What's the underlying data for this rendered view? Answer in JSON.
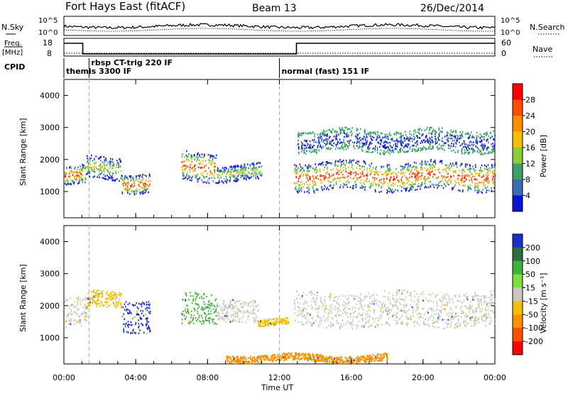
{
  "header": {
    "title": "Fort Hays East (fitACF)",
    "beam": "Beam 13",
    "date": "26/Dec/2014"
  },
  "noise_panel": {
    "left_label": "N.Sky",
    "right_label": "N.Search",
    "left_ticks": [
      "10^5",
      "10^0"
    ],
    "right_ticks": [
      "10^5",
      "10^0"
    ]
  },
  "freq_panel": {
    "left_label_1": "Freq.",
    "left_label_2": "[MHz]",
    "right_label": "Nave",
    "left_ticks": [
      "18",
      "8"
    ],
    "right_ticks": [
      "60",
      "0"
    ]
  },
  "cpid": {
    "label": "CPID",
    "segments": [
      {
        "text": "themis 3300 IF",
        "start_hour": 0.0
      },
      {
        "text": "rbsp CT-trig 220 IF",
        "start_hour": 1.4
      },
      {
        "text": "normal (fast) 151 IF",
        "start_hour": 12.0
      }
    ]
  },
  "power_panel": {
    "ylabel": "Slant Range [km]",
    "colorbar_label": "Power [dB]",
    "colorbar_ticks": [
      "28",
      "24",
      "20",
      "16",
      "12",
      "8",
      "4"
    ],
    "colorbar_colors": [
      "#ff0000",
      "#ff4c00",
      "#ff8c00",
      "#f0c000",
      "#8ccc3c",
      "#3ca068",
      "#3c6cb4",
      "#0a14d6"
    ]
  },
  "velocity_panel": {
    "ylabel": "Slant Range [km]",
    "colorbar_label": "Velocity [m s⁻¹]",
    "colorbar_ticks": [
      "200",
      "100",
      "50",
      "15",
      "-15",
      "-50",
      "-100",
      "-200"
    ],
    "colorbar_colors": [
      "#1a2ec8",
      "#2e6e3c",
      "#3cb43c",
      "#7ede3c",
      "#c8c8c0",
      "#f0c000",
      "#ff9000",
      "#ff5000",
      "#ff0000"
    ]
  },
  "chart_data": {
    "type": "heatmap",
    "xlabel": "Time UT",
    "x_ticks": [
      "00:00",
      "04:00",
      "08:00",
      "12:00",
      "16:00",
      "20:00",
      "00:00"
    ],
    "xlim_hours": [
      0,
      24
    ],
    "y_ticks": [
      "1000",
      "2000",
      "3000",
      "4000"
    ],
    "ylim_km": [
      180,
      4500
    ],
    "freq_mhz": [
      {
        "from_hour": 0.0,
        "to_hour": 1.05,
        "value": 16
      },
      {
        "from_hour": 1.05,
        "to_hour": 12.95,
        "value": 8.5
      },
      {
        "from_hour": 12.95,
        "to_hour": 24.0,
        "value": 16
      }
    ],
    "power_bands": [
      {
        "start": 0.0,
        "end": 1.2,
        "center_km": 1500,
        "width_km": 600,
        "level": "high"
      },
      {
        "start": 1.2,
        "end": 3.2,
        "center_km": 1750,
        "width_km": 700,
        "level": "mid"
      },
      {
        "start": 3.2,
        "end": 4.8,
        "center_km": 1300,
        "width_km": 600,
        "level": "high"
      },
      {
        "start": 6.5,
        "end": 8.5,
        "center_km": 1800,
        "width_km": 900,
        "level": "high"
      },
      {
        "start": 8.5,
        "end": 11.0,
        "center_km": 1600,
        "width_km": 500,
        "level": "mid"
      },
      {
        "start": 12.8,
        "end": 24.0,
        "center_km": 1500,
        "width_km": 900,
        "level": "high"
      },
      {
        "start": 13.0,
        "end": 24.0,
        "center_km": 2600,
        "width_km": 700,
        "level": "low"
      }
    ],
    "velocity_bands": [
      {
        "start": 0.0,
        "end": 1.3,
        "center_km": 1800,
        "width_km": 900,
        "class": "-15"
      },
      {
        "start": 1.3,
        "end": 3.2,
        "center_km": 2200,
        "width_km": 500,
        "class": "-50"
      },
      {
        "start": 3.2,
        "end": 4.8,
        "center_km": 1700,
        "width_km": 1000,
        "class": "200"
      },
      {
        "start": 6.5,
        "end": 8.5,
        "center_km": 1900,
        "width_km": 1000,
        "class": "50"
      },
      {
        "start": 8.5,
        "end": 10.8,
        "center_km": 1900,
        "width_km": 700,
        "class": "15"
      },
      {
        "start": 10.8,
        "end": 12.5,
        "center_km": 1500,
        "width_km": 200,
        "class": "-50"
      },
      {
        "start": 12.8,
        "end": 24.0,
        "center_km": 1900,
        "width_km": 1100,
        "class": "15"
      },
      {
        "start": 9.0,
        "end": 18.0,
        "center_km": 380,
        "width_km": 220,
        "class": "-100"
      }
    ]
  }
}
